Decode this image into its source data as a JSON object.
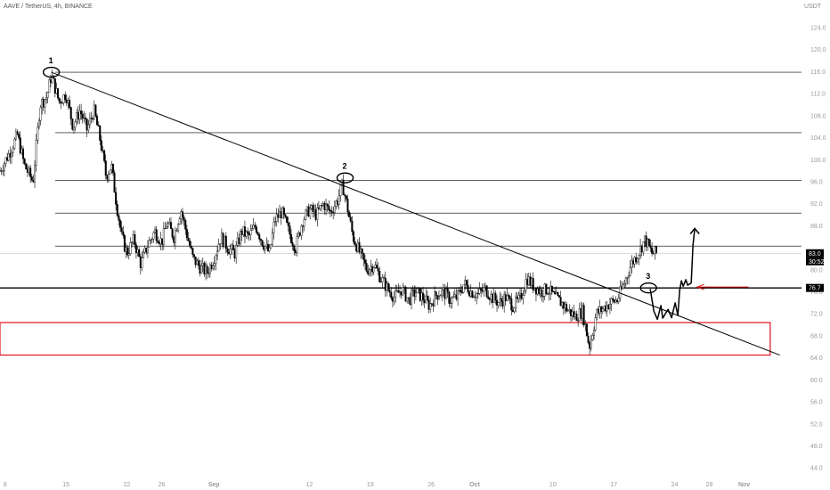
{
  "header": {
    "symbol_title": "AAVE / TetherUS, 4h, BINANCE",
    "currency": "USDT"
  },
  "colors": {
    "candle": "#000000",
    "grid_line": "#000000",
    "support_zone": "#e0141e",
    "arrow": "#e0141e",
    "tag_bg": "#000000",
    "tag_text": "#ffffff"
  },
  "chart_data": {
    "type": "candlestick",
    "title": "AAVE / TetherUS, 4h, BINANCE",
    "ylabel": "USDT",
    "ylim": [
      41.6,
      127.4
    ],
    "y_ticks": [
      "124.0",
      "120.0",
      "116.0",
      "112.0",
      "108.0",
      "104.0",
      "100.0",
      "96.0",
      "92.0",
      "88.0",
      "80.0",
      "76.0",
      "72.0",
      "68.0",
      "64.0",
      "60.0",
      "56.0",
      "52.0",
      "48.0",
      "44.0"
    ],
    "x_ticks": [
      {
        "label": "8",
        "day": 8
      },
      {
        "label": "15",
        "day": 15
      },
      {
        "label": "22",
        "day": 22
      },
      {
        "label": "26",
        "day": 26
      },
      {
        "label": "Sep",
        "day": 32
      },
      {
        "label": "12",
        "day": 43
      },
      {
        "label": "19",
        "day": 50
      },
      {
        "label": "26",
        "day": 57
      },
      {
        "label": "Oct",
        "day": 62
      },
      {
        "label": "10",
        "day": 71
      },
      {
        "label": "17",
        "day": 78
      },
      {
        "label": "24",
        "day": 85
      },
      {
        "label": "28",
        "day": 89
      },
      {
        "label": "Nov",
        "day": 93
      }
    ],
    "x_range": [
      7.4,
      99.6
    ],
    "price_tags": [
      {
        "label": "83.0",
        "value": 83.0,
        "style": "dark"
      },
      {
        "label": "30:52",
        "value": 81.4,
        "style": "dark"
      },
      {
        "label": "76.7",
        "value": 76.7,
        "style": "dark"
      }
    ],
    "horizontal_levels": [
      115.9,
      104.9,
      96.2,
      90.3,
      84.3,
      76.7
    ],
    "support_zone": [
      64.5,
      70.4
    ],
    "trendline": {
      "from": [
        13.3,
        115.9
      ],
      "to": [
        97.1,
        64.5
      ]
    },
    "markers": [
      {
        "label": "1",
        "day": 13.3,
        "value": 115.9
      },
      {
        "label": "2",
        "day": 47.1,
        "value": 96.7
      },
      {
        "label": "3",
        "day": 82.0,
        "value": 76.7
      }
    ],
    "closes": [
      [
        7.4,
        98.0
      ],
      [
        8.4,
        101.0
      ],
      [
        9.4,
        104.5
      ],
      [
        10.2,
        99.0
      ],
      [
        11.2,
        96.0
      ],
      [
        12.0,
        110.0
      ],
      [
        12.8,
        111.5
      ],
      [
        13.3,
        115.4
      ],
      [
        14.2,
        110.5
      ],
      [
        15.0,
        112.0
      ],
      [
        15.8,
        106.0
      ],
      [
        16.6,
        109.0
      ],
      [
        17.4,
        105.5
      ],
      [
        18.2,
        109.0
      ],
      [
        19.0,
        103.0
      ],
      [
        19.6,
        97.0
      ],
      [
        20.2,
        99.0
      ],
      [
        20.8,
        92.0
      ],
      [
        21.4,
        86.0
      ],
      [
        22.0,
        83.0
      ],
      [
        22.8,
        85.5
      ],
      [
        23.6,
        81.0
      ],
      [
        24.4,
        84.5
      ],
      [
        25.2,
        87.0
      ],
      [
        26.0,
        85.0
      ],
      [
        26.6,
        88.5
      ],
      [
        27.4,
        86.0
      ],
      [
        28.2,
        91.0
      ],
      [
        28.8,
        87.0
      ],
      [
        29.6,
        82.0
      ],
      [
        30.4,
        80.5
      ],
      [
        31.2,
        79.5
      ],
      [
        32.0,
        82.0
      ],
      [
        32.8,
        86.0
      ],
      [
        33.6,
        84.0
      ],
      [
        34.4,
        83.0
      ],
      [
        35.2,
        87.0
      ],
      [
        36.0,
        86.0
      ],
      [
        36.8,
        88.0
      ],
      [
        37.6,
        85.0
      ],
      [
        38.4,
        83.0
      ],
      [
        39.0,
        89.0
      ],
      [
        39.8,
        90.5
      ],
      [
        40.6,
        87.0
      ],
      [
        41.4,
        84.0
      ],
      [
        42.2,
        89.0
      ],
      [
        43.0,
        91.0
      ],
      [
        43.8,
        90.0
      ],
      [
        44.6,
        92.0
      ],
      [
        45.4,
        90.5
      ],
      [
        46.2,
        92.5
      ],
      [
        46.8,
        95.5
      ],
      [
        47.4,
        91.0
      ],
      [
        48.0,
        86.0
      ],
      [
        48.8,
        83.0
      ],
      [
        49.6,
        80.0
      ],
      [
        50.4,
        81.0
      ],
      [
        51.2,
        78.5
      ],
      [
        52.0,
        76.5
      ],
      [
        52.8,
        75.0
      ],
      [
        53.6,
        76.5
      ],
      [
        54.4,
        74.5
      ],
      [
        55.2,
        76.0
      ],
      [
        56.0,
        75.0
      ],
      [
        56.8,
        73.5
      ],
      [
        57.6,
        75.5
      ],
      [
        58.4,
        76.0
      ],
      [
        59.2,
        74.5
      ],
      [
        60.0,
        75.0
      ],
      [
        60.8,
        77.5
      ],
      [
        61.6,
        76.0
      ],
      [
        62.4,
        75.5
      ],
      [
        63.2,
        76.5
      ],
      [
        64.0,
        75.0
      ],
      [
        64.8,
        74.0
      ],
      [
        65.6,
        75.0
      ],
      [
        66.4,
        73.5
      ],
      [
        67.2,
        74.5
      ],
      [
        68.0,
        78.5
      ],
      [
        68.8,
        77.0
      ],
      [
        69.6,
        76.0
      ],
      [
        70.4,
        76.5
      ],
      [
        71.2,
        75.0
      ],
      [
        72.0,
        74.0
      ],
      [
        72.8,
        72.5
      ],
      [
        73.6,
        71.5
      ],
      [
        74.4,
        72.5
      ],
      [
        75.2,
        66.0
      ],
      [
        76.0,
        72.0
      ],
      [
        76.8,
        73.0
      ],
      [
        77.6,
        74.0
      ],
      [
        78.4,
        74.5
      ],
      [
        79.2,
        77.5
      ],
      [
        80.0,
        81.0
      ],
      [
        80.8,
        83.0
      ],
      [
        81.6,
        85.5
      ],
      [
        82.4,
        83.0
      ],
      [
        83.0,
        83.0
      ]
    ]
  }
}
